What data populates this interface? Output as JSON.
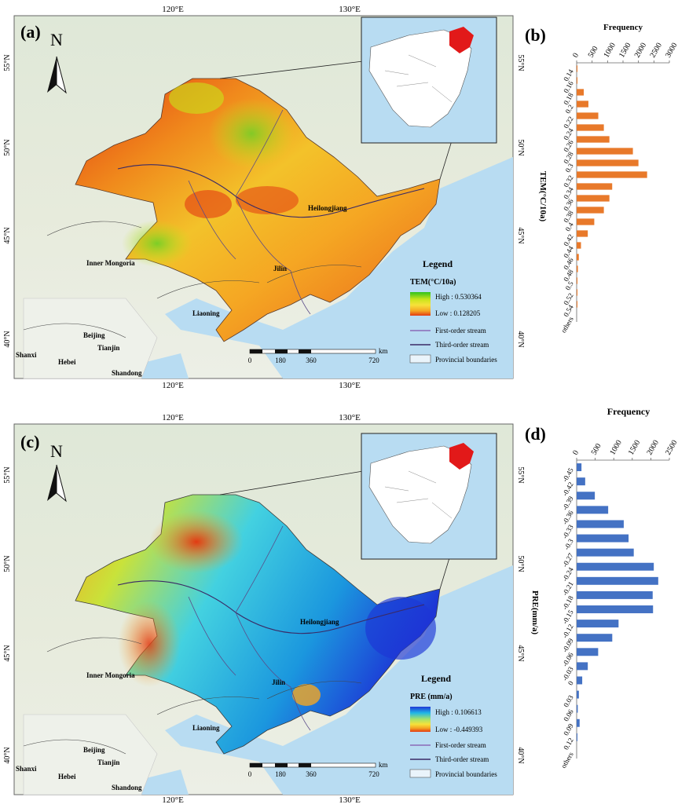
{
  "top_map": {
    "panel_label": "(a)",
    "north_label": "N",
    "lon_labels": [
      "120°E",
      "130°E"
    ],
    "lat_labels": [
      "55°N",
      "50°N",
      "45°N",
      "40°N"
    ],
    "place_names": [
      "Inner Mongoria",
      "Heilongjiang",
      "Jilin",
      "Liaoning",
      "Beijing",
      "Tianjin",
      "Hebei",
      "Shanxi",
      "Shandong"
    ],
    "legend": {
      "title": "Legend",
      "variable": "TEM(°C/10a)",
      "high": "High : 0.530364",
      "low": "Low : 0.128205",
      "ramp": [
        "#2fc21d",
        "#c8e51a",
        "#f6e23a",
        "#f5a623",
        "#e23a12"
      ],
      "stream1": "First-order stream",
      "stream3": "Third-order stream",
      "boundary": "Provincial boundaries"
    },
    "scalebar": [
      "0",
      "180",
      "360",
      "720",
      "km"
    ]
  },
  "top_hist": {
    "panel_label": "(b)",
    "title": "Frequency",
    "ylabel": "TEM(°C/10a)",
    "bar_color": "#e8792a"
  },
  "bottom_map": {
    "panel_label": "(c)",
    "north_label": "N",
    "lon_labels": [
      "120°E",
      "130°E"
    ],
    "lat_labels": [
      "55°N",
      "50°N",
      "45°N",
      "40°N"
    ],
    "place_names": [
      "Inner Mongoria",
      "Heilongjiang",
      "Jilin",
      "Liaoning",
      "Beijing",
      "Tianjin",
      "Hebei",
      "Shanxi",
      "Shandong"
    ],
    "legend": {
      "title": "Legend",
      "variable": "PRE (mm/a)",
      "high": "High : 0.106613",
      "low": "Low : -0.449393",
      "ramp": [
        "#1d36d6",
        "#20b7e6",
        "#a6e36a",
        "#f6e23a",
        "#f5a623",
        "#e23a12"
      ],
      "stream1": "First-order stream",
      "stream3": "Third-order stream",
      "boundary": "Provincial boundaries"
    },
    "scalebar": [
      "0",
      "180",
      "360",
      "720",
      "km"
    ]
  },
  "bottom_hist": {
    "panel_label": "(d)",
    "title": "Frequency",
    "ylabel": "PRE(mm/a)",
    "bar_color": "#4472c4"
  },
  "chart_data": [
    {
      "type": "bar",
      "orientation": "horizontal",
      "title": "Frequency",
      "ylabel": "TEM(°C/10a)",
      "xlim": [
        0,
        3000
      ],
      "xticks": [
        "0",
        "500",
        "1000",
        "1500",
        "2000",
        "2500",
        "3000"
      ],
      "categories": [
        "0.14",
        "0.16",
        "0.18",
        "0.2",
        "0.22",
        "0.24",
        "0.26",
        "0.28",
        "0.3",
        "0.32",
        "0.34",
        "0.36",
        "0.38",
        "0.4",
        "0.42",
        "0.44",
        "0.46",
        "0.48",
        "0.5",
        "0.52",
        "0.54",
        "others"
      ],
      "values": [
        5,
        10,
        230,
        380,
        700,
        880,
        1060,
        1820,
        2000,
        2280,
        1150,
        1060,
        880,
        570,
        360,
        140,
        70,
        40,
        20,
        10,
        5,
        0
      ]
    },
    {
      "type": "bar",
      "orientation": "horizontal",
      "title": "Frequency",
      "ylabel": "PRE(mm/a)",
      "xlim": [
        0,
        2500
      ],
      "xticks": [
        "0",
        "500",
        "1000",
        "1500",
        "2000",
        "2500"
      ],
      "categories": [
        "-0.45",
        "-0.42",
        "-0.39",
        "-0.36",
        "-0.33",
        "-0.3",
        "-0.27",
        "-0.24",
        "-0.21",
        "-0.18",
        "-0.15",
        "-0.12",
        "-0.09",
        "-0.06",
        "-0.03",
        "0",
        "0.03",
        "0.06",
        "0.09",
        "0.12",
        "others"
      ],
      "values": [
        130,
        230,
        490,
        850,
        1270,
        1400,
        1540,
        2080,
        2200,
        2050,
        2060,
        1130,
        960,
        580,
        300,
        150,
        60,
        30,
        80,
        10,
        0
      ]
    }
  ]
}
